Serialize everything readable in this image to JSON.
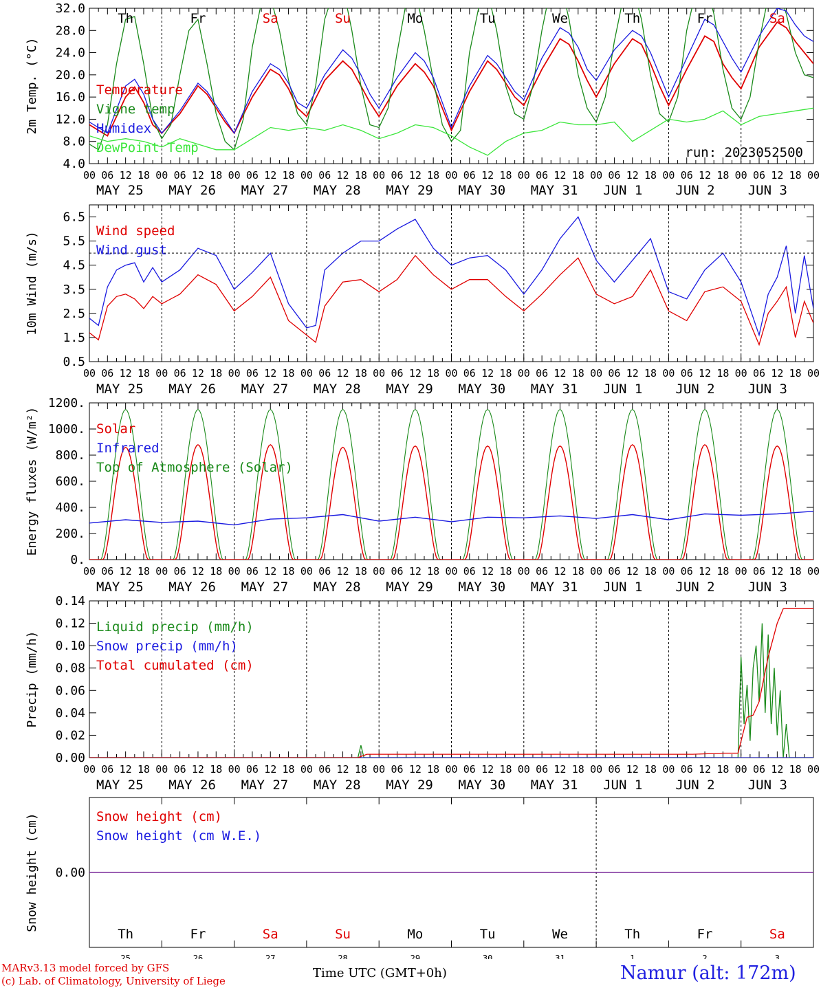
{
  "run_label": "run: 2023052500",
  "footer": {
    "model_line": "MARv3.13 model forced by GFS",
    "credit_line": "(c) Lab. of Climatology, University of Liege",
    "time_label": "Time UTC (GMT+0h)",
    "month_overlay": "MAY",
    "month_overlay_2": "JUN",
    "station": "Namur (alt: 172m)"
  },
  "days": {
    "weekday": [
      "Th",
      "Fr",
      "Sa",
      "Su",
      "Mo",
      "Tu",
      "We",
      "Th",
      "Fr",
      "Sa"
    ],
    "weekend_color": "#e00000",
    "weekday_color": "#000000",
    "weekend": [
      false,
      false,
      true,
      true,
      false,
      false,
      false,
      false,
      false,
      true
    ],
    "date_labels": [
      "MAY 25",
      "MAY 26",
      "MAY 27",
      "MAY 28",
      "MAY 29",
      "MAY 30",
      "MAY 31",
      "JUN  1",
      "JUN  2",
      "JUN  3"
    ],
    "day_numbers": [
      "25",
      "26",
      "27",
      "28",
      "29",
      "30",
      "31",
      "1",
      "2",
      "3"
    ],
    "hour_ticks": [
      "00",
      "06",
      "12",
      "18"
    ],
    "end_tick": "00"
  },
  "colors": {
    "red": "#e00000",
    "green": "#1a8a1a",
    "blue": "#1a1ae0",
    "lightgreen": "#3ce63c",
    "purple": "#7a2a9a"
  },
  "chart_data": [
    {
      "id": "temperature",
      "type": "line",
      "ylabel": "2m Temp. (°C)",
      "ylim": [
        4,
        32
      ],
      "yticks": [
        "4.0",
        "8.0",
        "12.0",
        "16.0",
        "20.0",
        "24.0",
        "28.0",
        "32.0"
      ],
      "x_unit": "hours since 2023-05-25 00 UTC",
      "series": [
        {
          "name": "Temperature",
          "color": "#e00000",
          "x": [
            0,
            6,
            12,
            15,
            18,
            21,
            24,
            30,
            36,
            39,
            42,
            45,
            48,
            54,
            60,
            63,
            66,
            69,
            72,
            78,
            84,
            87,
            90,
            93,
            96,
            102,
            108,
            111,
            114,
            117,
            120,
            126,
            132,
            135,
            138,
            141,
            144,
            150,
            156,
            159,
            162,
            165,
            168,
            174,
            180,
            183,
            186,
            189,
            192,
            198,
            204,
            207,
            210,
            213,
            216,
            222,
            228,
            231,
            234,
            237,
            240
          ],
          "y": [
            11,
            9,
            16,
            17.8,
            15,
            11,
            9.5,
            13,
            18,
            16.5,
            14,
            11.5,
            9.5,
            16,
            21,
            20,
            17.5,
            14,
            12.5,
            19,
            22.5,
            21,
            18,
            15,
            12.5,
            18,
            22,
            20.5,
            18,
            14,
            10,
            17,
            22.5,
            21,
            18.5,
            16,
            14.5,
            21,
            26.5,
            25.5,
            22.5,
            19,
            16,
            22,
            26.5,
            25.5,
            22,
            18,
            14.5,
            21,
            27,
            26,
            22,
            19.5,
            17.5,
            25,
            29.5,
            28.5,
            26,
            24,
            22
          ]
        },
        {
          "name": "Vigne temp",
          "color": "#1a8a1a",
          "x": [
            0,
            3,
            6,
            9,
            12,
            15,
            18,
            21,
            24,
            27,
            30,
            33,
            36,
            39,
            42,
            45,
            48,
            51,
            54,
            57,
            60,
            63,
            66,
            69,
            72,
            75,
            78,
            81,
            84,
            87,
            90,
            93,
            96,
            99,
            102,
            105,
            108,
            111,
            114,
            117,
            120,
            123,
            126,
            129,
            132,
            135,
            138,
            141,
            144,
            147,
            150,
            153,
            156,
            159,
            162,
            165,
            168,
            171,
            174,
            177,
            180,
            183,
            186,
            189,
            192,
            195,
            198,
            201,
            204,
            207,
            210,
            213,
            216,
            219,
            222,
            225,
            228,
            231,
            234,
            237,
            240
          ],
          "y": [
            7.5,
            6.5,
            11,
            22,
            30,
            30.5,
            22,
            12,
            8.5,
            11,
            20,
            28,
            30,
            22,
            13,
            8,
            6.5,
            12,
            25,
            33,
            34,
            28,
            19,
            13,
            11,
            18,
            30,
            35,
            36,
            28,
            18,
            11,
            10.5,
            14,
            24,
            33,
            35,
            28,
            19,
            11,
            8,
            10,
            24,
            32,
            35,
            28,
            18,
            13,
            12,
            18,
            28,
            36,
            37,
            30,
            20,
            14,
            11.5,
            16,
            26,
            34,
            36,
            30,
            20,
            13,
            11.5,
            16,
            28,
            35,
            37,
            31,
            21,
            14,
            12,
            16,
            26,
            34,
            36,
            31,
            24,
            20,
            19.5
          ]
        },
        {
          "name": "Humidex",
          "color": "#1a1ae0",
          "x": [
            0,
            6,
            12,
            15,
            18,
            21,
            24,
            30,
            36,
            39,
            42,
            45,
            48,
            54,
            60,
            63,
            66,
            69,
            72,
            78,
            84,
            87,
            90,
            93,
            96,
            102,
            108,
            111,
            114,
            117,
            120,
            126,
            132,
            135,
            138,
            141,
            144,
            150,
            156,
            159,
            162,
            165,
            168,
            174,
            180,
            183,
            186,
            189,
            192,
            198,
            204,
            207,
            210,
            213,
            216,
            222,
            228,
            231,
            234,
            237,
            240
          ],
          "y": [
            11.5,
            9.5,
            18,
            19.2,
            16.5,
            12,
            9.5,
            13.5,
            18.5,
            17,
            14.5,
            12,
            9.5,
            17,
            22,
            21,
            18.5,
            15,
            14,
            20,
            24.5,
            23,
            20,
            16.5,
            14,
            19.5,
            24,
            22.5,
            19.5,
            15,
            10.5,
            18,
            23.5,
            22,
            19.5,
            17,
            15.5,
            23,
            28.5,
            27.5,
            25,
            21,
            19,
            24.5,
            28,
            27,
            24,
            20,
            16,
            23,
            30,
            29,
            26,
            23,
            20.5,
            27,
            32,
            31.5,
            29,
            27,
            26
          ]
        },
        {
          "name": "DewPoint Temp",
          "color": "#3ce63c",
          "x": [
            0,
            6,
            12,
            18,
            24,
            30,
            36,
            42,
            48,
            54,
            60,
            66,
            72,
            78,
            84,
            90,
            96,
            102,
            108,
            114,
            120,
            126,
            132,
            138,
            144,
            150,
            156,
            162,
            168,
            174,
            180,
            186,
            192,
            198,
            204,
            210,
            216,
            222,
            228,
            234,
            240
          ],
          "y": [
            9,
            8,
            8.5,
            8,
            7,
            8.5,
            7.5,
            6.5,
            6.5,
            8.5,
            10.5,
            10,
            10.5,
            10,
            11,
            10,
            8.5,
            9.5,
            11,
            10.5,
            9,
            7,
            5.5,
            8,
            9.5,
            10,
            11.5,
            11,
            11,
            11.5,
            8,
            10,
            12,
            11.5,
            12,
            13.5,
            11,
            12.5,
            13,
            13.5,
            14
          ]
        }
      ],
      "legend": [
        "Temperature",
        "Vigne temp",
        "Humidex",
        "DewPoint Temp"
      ]
    },
    {
      "id": "wind",
      "type": "line",
      "ylabel": "10m Wind (m/s)",
      "ylim": [
        0.5,
        7
      ],
      "yticks": [
        "0.5",
        "1.5",
        "2.5",
        "3.5",
        "4.5",
        "5.5",
        "6.5"
      ],
      "threshold": 5,
      "x_unit": "hours since 2023-05-25 00 UTC",
      "series": [
        {
          "name": "Wind speed",
          "color": "#e00000",
          "x": [
            0,
            3,
            6,
            9,
            12,
            15,
            18,
            21,
            24,
            30,
            36,
            42,
            48,
            54,
            60,
            66,
            72,
            75,
            78,
            84,
            90,
            96,
            102,
            108,
            114,
            120,
            126,
            132,
            138,
            144,
            150,
            156,
            162,
            168,
            174,
            180,
            186,
            192,
            198,
            204,
            210,
            216,
            222,
            225,
            228,
            231,
            234,
            237,
            240
          ],
          "y": [
            1.7,
            1.4,
            2.8,
            3.2,
            3.3,
            3.1,
            2.7,
            3.2,
            2.9,
            3.3,
            4.1,
            3.7,
            2.6,
            3.2,
            4.0,
            2.2,
            1.6,
            1.3,
            2.8,
            3.8,
            3.9,
            3.4,
            3.9,
            4.9,
            4.1,
            3.5,
            3.9,
            3.9,
            3.2,
            2.6,
            3.3,
            4.1,
            4.8,
            3.3,
            2.9,
            3.2,
            4.3,
            2.6,
            2.2,
            3.4,
            3.6,
            3.0,
            1.2,
            2.5,
            3.0,
            3.6,
            1.5,
            3.0,
            2.1
          ]
        },
        {
          "name": "Wind gust",
          "color": "#1a1ae0",
          "x": [
            0,
            3,
            6,
            9,
            12,
            15,
            18,
            21,
            24,
            30,
            36,
            42,
            48,
            54,
            60,
            66,
            72,
            75,
            78,
            84,
            90,
            96,
            102,
            108,
            114,
            120,
            126,
            132,
            138,
            144,
            150,
            156,
            162,
            168,
            174,
            180,
            186,
            192,
            198,
            204,
            210,
            216,
            222,
            225,
            228,
            231,
            234,
            237,
            240
          ],
          "y": [
            2.3,
            2.0,
            3.6,
            4.3,
            4.5,
            4.6,
            3.8,
            4.4,
            3.8,
            4.3,
            5.2,
            4.9,
            3.5,
            4.2,
            5.0,
            2.9,
            1.9,
            2.0,
            4.3,
            5.0,
            5.5,
            5.5,
            6.0,
            6.4,
            5.2,
            4.5,
            4.8,
            4.9,
            4.3,
            3.3,
            4.3,
            5.6,
            6.5,
            4.7,
            3.8,
            4.7,
            5.6,
            3.4,
            3.1,
            4.3,
            5.0,
            3.8,
            1.6,
            3.3,
            4.0,
            5.3,
            2.5,
            4.9,
            2.7
          ]
        }
      ],
      "legend": [
        "Wind speed",
        "Wind gust"
      ]
    },
    {
      "id": "energy",
      "type": "line",
      "ylabel": "Energy fluxes (W/m²)",
      "ylim": [
        0,
        1200
      ],
      "yticks": [
        "0.",
        "200.",
        "400.",
        "600.",
        "800.",
        "1000.",
        "1200."
      ],
      "x_unit": "hours since 2023-05-25 00 UTC",
      "daily_peak": {
        "top_of_atmosphere": 1150,
        "solar": [
          860,
          880,
          880,
          860,
          870,
          870,
          870,
          880,
          880,
          870
        ]
      },
      "series": [
        {
          "name": "Solar",
          "color": "#e00000"
        },
        {
          "name": "Infrared",
          "color": "#1a1ae0",
          "x": [
            0,
            12,
            24,
            36,
            48,
            60,
            72,
            84,
            96,
            108,
            120,
            132,
            144,
            156,
            168,
            180,
            192,
            204,
            216,
            228,
            240
          ],
          "y": [
            280,
            305,
            285,
            295,
            265,
            310,
            320,
            345,
            295,
            325,
            290,
            325,
            320,
            335,
            315,
            345,
            305,
            350,
            340,
            350,
            370
          ]
        },
        {
          "name": "Top of Atmosphere (Solar)",
          "color": "#1a8a1a"
        }
      ],
      "legend": [
        "Solar",
        "Infrared",
        "Top of Atmosphere (Solar)"
      ]
    },
    {
      "id": "precip",
      "type": "line",
      "ylabel": "Precip (mm/h)",
      "ylim": [
        0,
        0.14
      ],
      "yticks": [
        "0.00",
        "0.02",
        "0.04",
        "0.06",
        "0.08",
        "0.10",
        "0.12",
        "0.14"
      ],
      "x_unit": "hours since 2023-05-25 00 UTC",
      "series": [
        {
          "name": "Liquid precip (mm/h)",
          "color": "#1a8a1a",
          "x": [
            0,
            89,
            90,
            91,
            215,
            216,
            217,
            218,
            219,
            220,
            221,
            222,
            223,
            224,
            225,
            226,
            227,
            228,
            229,
            230,
            231,
            232,
            233,
            240
          ],
          "y": [
            0,
            0,
            0.011,
            0,
            0,
            0.09,
            0.03,
            0.065,
            0.015,
            0.08,
            0.1,
            0.05,
            0.12,
            0.04,
            0.11,
            0.03,
            0.08,
            0.02,
            0.06,
            0.0,
            0.03,
            0.0,
            0,
            0
          ]
        },
        {
          "name": "Snow precip (mm/h)",
          "color": "#1a1ae0",
          "x": [
            0,
            240
          ],
          "y": [
            0,
            0
          ]
        },
        {
          "name": "Total cumulated (cm)",
          "color": "#e00000",
          "x": [
            0,
            89,
            92,
            200,
            210,
            215,
            218,
            220,
            222,
            225,
            228,
            230,
            240
          ],
          "y": [
            0,
            0,
            0.003,
            0.003,
            0.004,
            0.004,
            0.036,
            0.038,
            0.05,
            0.09,
            0.12,
            0.133,
            0.133
          ]
        }
      ],
      "legend": [
        "Liquid precip (mm/h)",
        "Snow precip (mm/h)",
        "Total cumulated (cm)"
      ]
    },
    {
      "id": "snow",
      "type": "line",
      "ylabel": "Snow height (cm)",
      "yticks": [
        "0.00"
      ],
      "series": [
        {
          "name": "Snow height (cm)",
          "color": "#e00000",
          "x": [
            0,
            240
          ],
          "y": [
            0,
            0
          ]
        },
        {
          "name": "Snow height (cm W.E.)",
          "color": "#1a1ae0",
          "x": [
            0,
            240
          ],
          "y": [
            0,
            0
          ]
        }
      ],
      "legend": [
        "Snow height (cm)",
        "Snow height (cm W.E.)"
      ]
    }
  ]
}
